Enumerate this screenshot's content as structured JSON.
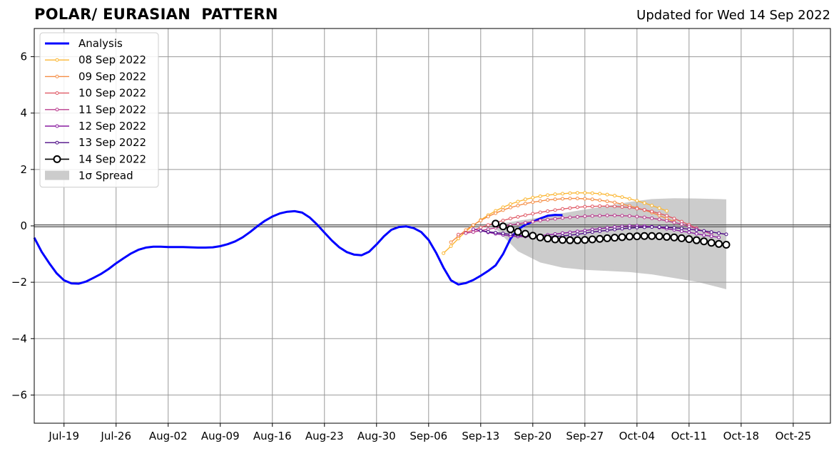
{
  "header": {
    "title": "POLAR/ EURASIAN  PATTERN",
    "updated": "Updated for Wed 14 Sep 2022"
  },
  "chart_data": {
    "type": "line",
    "title": "POLAR/ EURASIAN  PATTERN",
    "xlabel": "",
    "ylabel": "",
    "xlim": [
      "2022-07-15",
      "2022-10-30"
    ],
    "ylim": [
      -7,
      7
    ],
    "grid": true,
    "legend_position": "top-left",
    "x_ticks": [
      {
        "date": "2022-07-19",
        "label": "Jul-19"
      },
      {
        "date": "2022-07-26",
        "label": "Jul-26"
      },
      {
        "date": "2022-08-02",
        "label": "Aug-02"
      },
      {
        "date": "2022-08-09",
        "label": "Aug-09"
      },
      {
        "date": "2022-08-16",
        "label": "Aug-16"
      },
      {
        "date": "2022-08-23",
        "label": "Aug-23"
      },
      {
        "date": "2022-08-30",
        "label": "Aug-30"
      },
      {
        "date": "2022-09-06",
        "label": "Sep-06"
      },
      {
        "date": "2022-09-13",
        "label": "Sep-13"
      },
      {
        "date": "2022-09-20",
        "label": "Sep-20"
      },
      {
        "date": "2022-09-27",
        "label": "Sep-27"
      },
      {
        "date": "2022-10-04",
        "label": "Oct-04"
      },
      {
        "date": "2022-10-11",
        "label": "Oct-11"
      },
      {
        "date": "2022-10-18",
        "label": "Oct-18"
      },
      {
        "date": "2022-10-25",
        "label": "Oct-25"
      }
    ],
    "y_ticks": [
      {
        "value": -6,
        "label": "−6"
      },
      {
        "value": -4,
        "label": "−4"
      },
      {
        "value": -2,
        "label": "−2"
      },
      {
        "value": 0,
        "label": "0"
      },
      {
        "value": 2,
        "label": "2"
      },
      {
        "value": 4,
        "label": "4"
      },
      {
        "value": 6,
        "label": "6"
      }
    ],
    "analysis": {
      "name": "Analysis",
      "color": "#0000ff",
      "start": "2022-07-15",
      "values": [
        -0.42,
        -0.92,
        -1.32,
        -1.68,
        -1.93,
        -2.04,
        -2.05,
        -1.97,
        -1.84,
        -1.7,
        -1.53,
        -1.33,
        -1.15,
        -0.98,
        -0.85,
        -0.77,
        -0.74,
        -0.74,
        -0.75,
        -0.75,
        -0.75,
        -0.76,
        -0.77,
        -0.77,
        -0.76,
        -0.72,
        -0.65,
        -0.55,
        -0.41,
        -0.22,
        -0.01,
        0.18,
        0.33,
        0.44,
        0.5,
        0.52,
        0.47,
        0.3,
        0.05,
        -0.24,
        -0.52,
        -0.76,
        -0.93,
        -1.02,
        -1.04,
        -0.92,
        -0.66,
        -0.37,
        -0.14,
        -0.04,
        -0.02,
        -0.08,
        -0.22,
        -0.5,
        -0.95,
        -1.48,
        -1.93,
        -2.08,
        -2.03,
        -1.92,
        -1.77,
        -1.6,
        -1.4,
        -1.0,
        -0.46,
        -0.13,
        0.04,
        0.15,
        0.26,
        0.36,
        0.39,
        0.38
      ]
    },
    "forecasts": [
      {
        "name": "08 Sep 2022",
        "color": "#fbb632",
        "start": "2022-09-08",
        "values": [
          -0.97,
          -0.72,
          -0.45,
          -0.2,
          0.02,
          0.21,
          0.38,
          0.53,
          0.66,
          0.77,
          0.86,
          0.94,
          1.0,
          1.05,
          1.09,
          1.12,
          1.14,
          1.16,
          1.17,
          1.17,
          1.16,
          1.14,
          1.11,
          1.07,
          1.02,
          0.96,
          0.89,
          0.81,
          0.72,
          0.63,
          0.53
        ]
      },
      {
        "name": "09 Sep 2022",
        "color": "#f58d44",
        "start": "2022-09-09",
        "values": [
          -0.58,
          -0.36,
          -0.15,
          0.03,
          0.19,
          0.33,
          0.45,
          0.56,
          0.65,
          0.72,
          0.79,
          0.84,
          0.88,
          0.92,
          0.94,
          0.96,
          0.97,
          0.97,
          0.96,
          0.94,
          0.91,
          0.87,
          0.83,
          0.77,
          0.71,
          0.64,
          0.56,
          0.47,
          0.37,
          0.26,
          0.15
        ]
      },
      {
        "name": "10 Sep 2022",
        "color": "#e05a66",
        "start": "2022-09-10",
        "values": [
          -0.31,
          -0.24,
          -0.15,
          -0.06,
          0.03,
          0.11,
          0.19,
          0.26,
          0.32,
          0.38,
          0.43,
          0.48,
          0.52,
          0.56,
          0.6,
          0.63,
          0.66,
          0.68,
          0.69,
          0.7,
          0.7,
          0.69,
          0.67,
          0.65,
          0.61,
          0.57,
          0.51,
          0.44,
          0.36,
          0.26,
          0.15,
          0.04,
          -0.08
        ]
      },
      {
        "name": "11 Sep 2022",
        "color": "#b93c8e",
        "start": "2022-09-11",
        "values": [
          -0.26,
          -0.22,
          -0.17,
          -0.12,
          -0.07,
          -0.02,
          0.03,
          0.07,
          0.11,
          0.15,
          0.19,
          0.22,
          0.25,
          0.28,
          0.3,
          0.32,
          0.34,
          0.35,
          0.36,
          0.37,
          0.37,
          0.36,
          0.35,
          0.33,
          0.3,
          0.27,
          0.23,
          0.18,
          0.12,
          0.06,
          -0.02,
          -0.1,
          -0.19,
          -0.29
        ]
      },
      {
        "name": "12 Sep 2022",
        "color": "#8a1ca0",
        "start": "2022-09-12",
        "values": [
          -0.12,
          -0.17,
          -0.23,
          -0.28,
          -0.32,
          -0.36,
          -0.38,
          -0.38,
          -0.37,
          -0.35,
          -0.32,
          -0.29,
          -0.26,
          -0.23,
          -0.2,
          -0.17,
          -0.13,
          -0.1,
          -0.07,
          -0.04,
          -0.02,
          0.0,
          0.0,
          -0.01,
          -0.03,
          -0.06,
          -0.1,
          -0.14,
          -0.19,
          -0.23,
          -0.28,
          -0.33,
          -0.37,
          -0.41
        ]
      },
      {
        "name": "13 Sep 2022",
        "color": "#4d0c86",
        "start": "2022-09-13",
        "values": [
          -0.17,
          -0.21,
          -0.24,
          -0.27,
          -0.3,
          -0.33,
          -0.36,
          -0.38,
          -0.39,
          -0.39,
          -0.38,
          -0.36,
          -0.33,
          -0.3,
          -0.26,
          -0.22,
          -0.19,
          -0.16,
          -0.13,
          -0.1,
          -0.08,
          -0.06,
          -0.05,
          -0.04,
          -0.04,
          -0.05,
          -0.07,
          -0.09,
          -0.12,
          -0.15,
          -0.18,
          -0.22,
          -0.26,
          -0.3
        ]
      },
      {
        "name": "14 Sep 2022",
        "color": "#000000",
        "start": "2022-09-15",
        "values": [
          0.08,
          -0.02,
          -0.12,
          -0.21,
          -0.28,
          -0.35,
          -0.41,
          -0.45,
          -0.48,
          -0.5,
          -0.51,
          -0.51,
          -0.5,
          -0.48,
          -0.46,
          -0.44,
          -0.42,
          -0.4,
          -0.38,
          -0.37,
          -0.36,
          -0.36,
          -0.37,
          -0.39,
          -0.41,
          -0.44,
          -0.47,
          -0.51,
          -0.55,
          -0.6,
          -0.64,
          -0.67
        ]
      }
    ],
    "spread": {
      "name": "1σ Spread",
      "color": "#cccccc",
      "dates": [
        "2022-09-15",
        "2022-09-18",
        "2022-09-21",
        "2022-09-24",
        "2022-09-27",
        "2022-09-30",
        "2022-10-03",
        "2022-10-06",
        "2022-10-09",
        "2022-10-12",
        "2022-10-15",
        "2022-10-16"
      ],
      "upper": [
        0.05,
        0.18,
        0.3,
        0.45,
        0.58,
        0.7,
        0.85,
        0.95,
        0.98,
        0.97,
        0.95,
        0.94
      ],
      "lower": [
        -0.1,
        -0.9,
        -1.3,
        -1.48,
        -1.56,
        -1.6,
        -1.64,
        -1.72,
        -1.85,
        -1.98,
        -2.18,
        -2.25
      ]
    }
  }
}
